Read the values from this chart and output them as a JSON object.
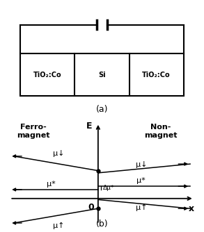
{
  "fig_width": 2.93,
  "fig_height": 3.34,
  "dpi": 100,
  "panel_a": {
    "label_left": "TiO₂:Co",
    "label_mid": "Si",
    "label_right": "TiO₂:Co",
    "caption_a": "(a)"
  },
  "panel_b": {
    "caption_b": "(b)",
    "label_ferro": "Ferro-\nmagnet",
    "label_non": "Non-\nmagnet",
    "label_E": "E",
    "label_x": "x",
    "label_0": "0",
    "label_mu_star_left": "μ*",
    "label_delta_mu": "Δμ*",
    "label_mu_down_ferro": "μ↓",
    "label_mu_up_ferro": "μ↑",
    "label_mu_down_non": "μ↓",
    "label_mu_up_non": "μ↑",
    "label_mu_star_right": "μ*"
  }
}
